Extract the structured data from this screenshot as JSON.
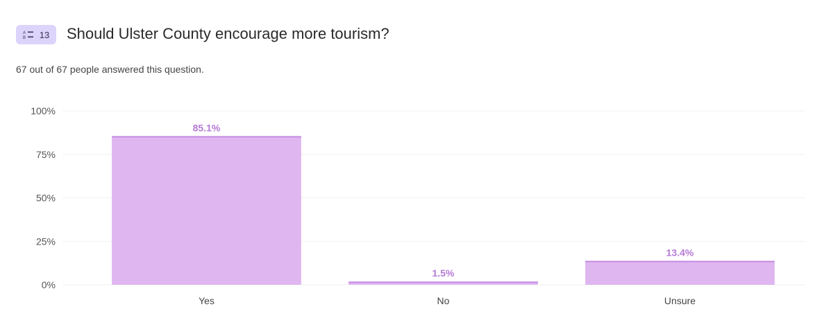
{
  "header": {
    "badge_number": "13",
    "badge_icon": "multiple-choice-icon",
    "title": "Should Ulster County encourage more tourism?"
  },
  "summary": "67 out of 67 people answered this question.",
  "colors": {
    "bar": "#dfb6f0",
    "bar_top": "#c48be0",
    "label": "#b57ad6",
    "badge": "#dcd4fb"
  },
  "chart_data": {
    "type": "bar",
    "categories": [
      "Yes",
      "No",
      "Unsure"
    ],
    "values": [
      85.1,
      1.5,
      13.4
    ],
    "data_labels": [
      "85.1%",
      "1.5%",
      "13.4%"
    ],
    "yticks": [
      "0%",
      "25%",
      "50%",
      "75%",
      "100%"
    ],
    "ylim": [
      0,
      100
    ],
    "grid": true,
    "title": "",
    "xlabel": "",
    "ylabel": ""
  }
}
